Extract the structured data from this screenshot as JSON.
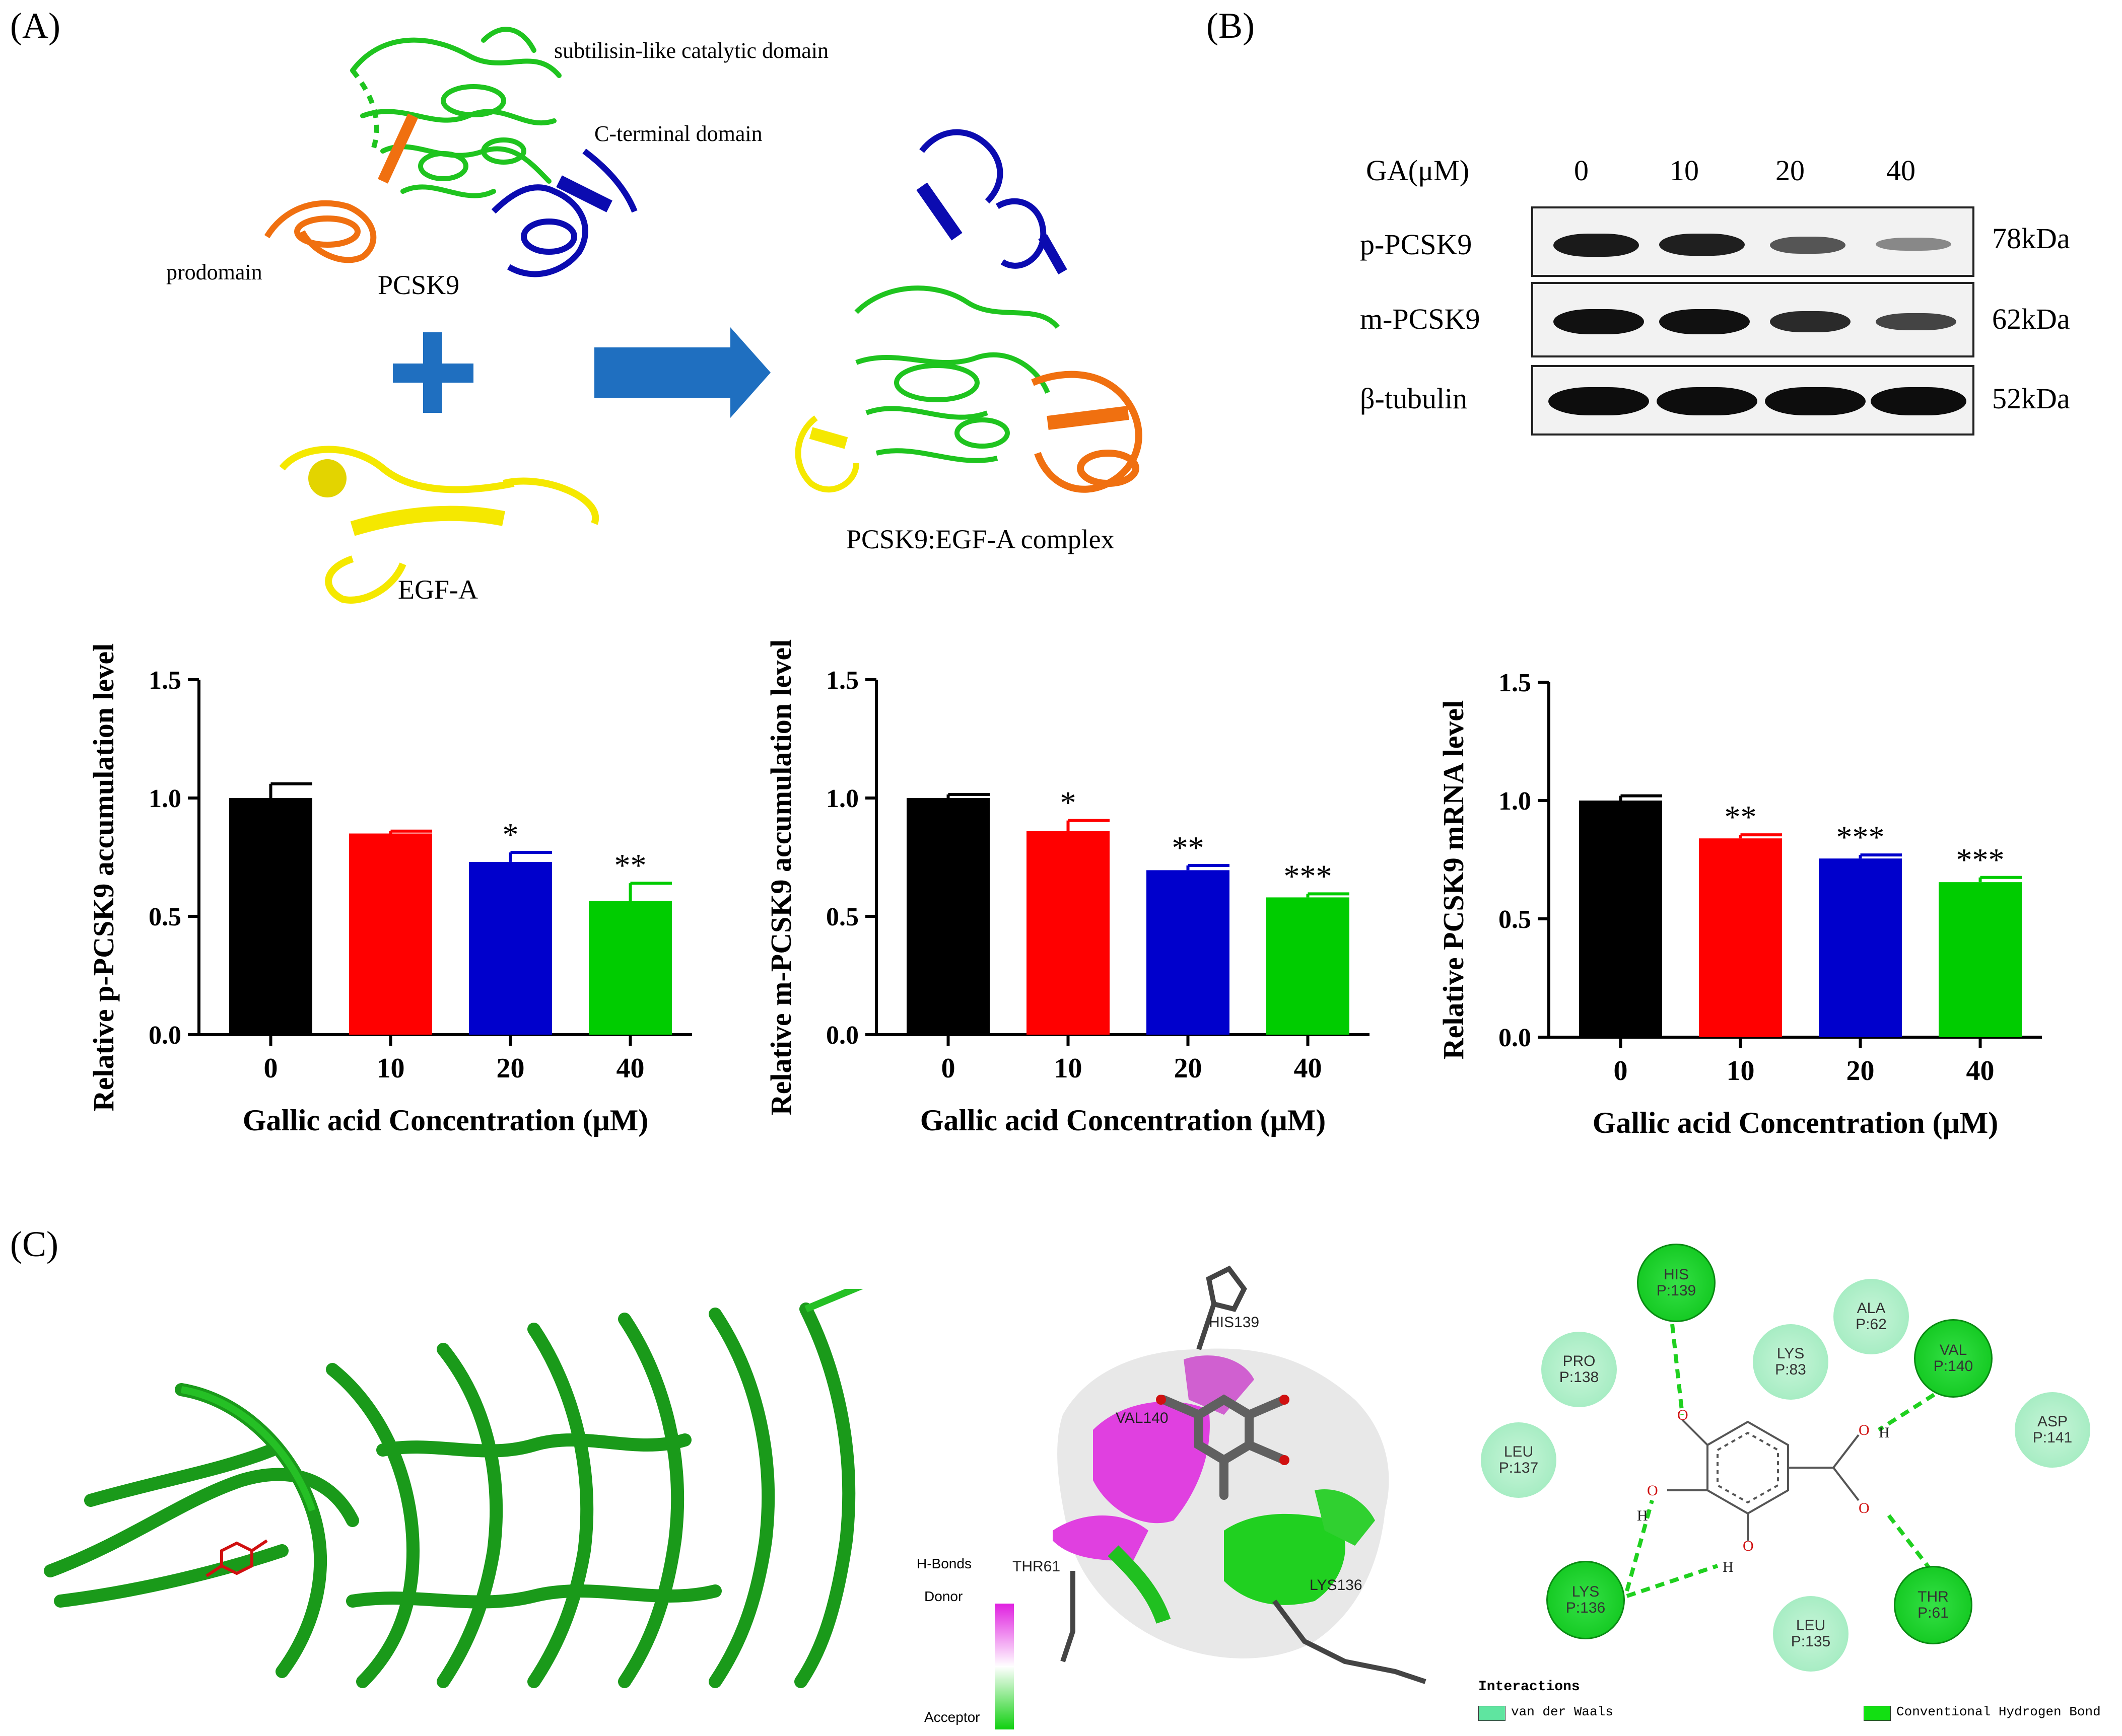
{
  "panels": {
    "a": "(A)",
    "b": "(B)",
    "c": "(C)"
  },
  "panel_a": {
    "subtilisin_label": "subtilisin-like catalytic domain",
    "cterminal_label": "C-terminal domain",
    "prodomain_label": "prodomain",
    "pcsk9_label": "PCSK9",
    "egfa_label": "EGF-A",
    "complex_label": "PCSK9:EGF-A complex",
    "colors": {
      "catalytic": "#1fc41f",
      "cterminal": "#0b0bb0",
      "prodomain": "#f07010",
      "egfa": "#f5e800",
      "arrow": "#1f6fc0"
    }
  },
  "panel_b": {
    "header_label": "GA(μM)",
    "concentrations": [
      "0",
      "10",
      "20",
      "40"
    ],
    "rows": [
      {
        "name": "p-PCSK9",
        "kda": "78kDa"
      },
      {
        "name": "m-PCSK9",
        "kda": "62kDa"
      },
      {
        "name": "β-tubulin",
        "kda": "52kDa"
      }
    ]
  },
  "chart_data": [
    {
      "type": "bar",
      "categories": [
        "0",
        "10",
        "20",
        "40"
      ],
      "values": [
        1.0,
        0.85,
        0.73,
        0.565
      ],
      "errors": [
        0.06,
        0.01,
        0.04,
        0.075
      ],
      "significance": [
        "",
        "",
        "*",
        "**"
      ],
      "colors": [
        "#000000",
        "#ff0000",
        "#0000cc",
        "#00cc00"
      ],
      "xlabel": "Gallic acid Concentration (μM)",
      "ylabel": "Relative p-PCSK9 accumulation level",
      "yticks": [
        "0.0",
        "0.5",
        "1.0",
        "1.5"
      ],
      "ylim": [
        0,
        1.5
      ]
    },
    {
      "type": "bar",
      "categories": [
        "0",
        "10",
        "20",
        "40"
      ],
      "values": [
        1.0,
        0.86,
        0.695,
        0.58
      ],
      "errors": [
        0.015,
        0.045,
        0.02,
        0.015
      ],
      "significance": [
        "",
        "*",
        "**",
        "***"
      ],
      "colors": [
        "#000000",
        "#ff0000",
        "#0000cc",
        "#00cc00"
      ],
      "xlabel": "Gallic acid Concentration (μM)",
      "ylabel": "Relative m-PCSK9 accumulation level",
      "yticks": [
        "0.0",
        "0.5",
        "1.0",
        "1.5"
      ],
      "ylim": [
        0,
        1.5
      ]
    },
    {
      "type": "bar",
      "categories": [
        "0",
        "10",
        "20",
        "40"
      ],
      "values": [
        1.0,
        0.84,
        0.755,
        0.655
      ],
      "errors": [
        0.02,
        0.015,
        0.015,
        0.02
      ],
      "significance": [
        "",
        "**",
        "***",
        "***"
      ],
      "colors": [
        "#000000",
        "#ff0000",
        "#0000cc",
        "#00cc00"
      ],
      "xlabel": "Gallic acid Concentration (μM)",
      "ylabel": "Relative  PCSK9  mRNA  level",
      "yticks": [
        "0.0",
        "0.5",
        "1.0",
        "1.5"
      ],
      "ylim": [
        0,
        1.5
      ]
    }
  ],
  "panel_c": {
    "residues_3d": [
      "HIS139",
      "VAL140",
      "THR61",
      "LYS136"
    ],
    "hbonds_legend": {
      "title": "H-Bonds",
      "donor": "Donor",
      "acceptor": "Acceptor"
    },
    "residues_2d": [
      {
        "name": "HIS",
        "id": "P:139",
        "kind": "hb"
      },
      {
        "name": "PRO",
        "id": "P:138",
        "kind": "vdw"
      },
      {
        "name": "LYS",
        "id": "P:83",
        "kind": "vdw"
      },
      {
        "name": "ALA",
        "id": "P:62",
        "kind": "vdw"
      },
      {
        "name": "VAL",
        "id": "P:140",
        "kind": "hb"
      },
      {
        "name": "ASP",
        "id": "P:141",
        "kind": "vdw"
      },
      {
        "name": "LEU",
        "id": "P:137",
        "kind": "vdw"
      },
      {
        "name": "LYS",
        "id": "P:136",
        "kind": "hb"
      },
      {
        "name": "LEU",
        "id": "P:135",
        "kind": "vdw"
      },
      {
        "name": "THR",
        "id": "P:61",
        "kind": "hb"
      }
    ],
    "interactions_legend": {
      "title": "Interactions",
      "vdw": "van der Waals",
      "hb": "Conventional Hydrogen Bond"
    }
  }
}
